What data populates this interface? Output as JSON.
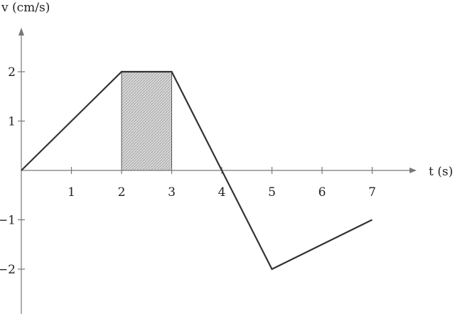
{
  "chart_data": {
    "type": "line",
    "xlabel": "t (s)",
    "ylabel": "v (cm/s)",
    "xticks": [
      1,
      2,
      3,
      4,
      5,
      6,
      7
    ],
    "yticks": [
      2,
      1,
      -1,
      -2
    ],
    "xtick_labels": [
      "1",
      "2",
      "3",
      "4",
      "5",
      "6",
      "7"
    ],
    "ytick_labels": [
      "2",
      "1",
      "−1",
      "−2"
    ],
    "series": [
      {
        "x": [
          0,
          2,
          3,
          5,
          7
        ],
        "y": [
          0,
          2,
          2,
          -2,
          -1
        ]
      }
    ],
    "shaded_region": {
      "x": [
        2,
        3
      ],
      "y": [
        0,
        2
      ]
    },
    "grid": false,
    "legend": false
  }
}
